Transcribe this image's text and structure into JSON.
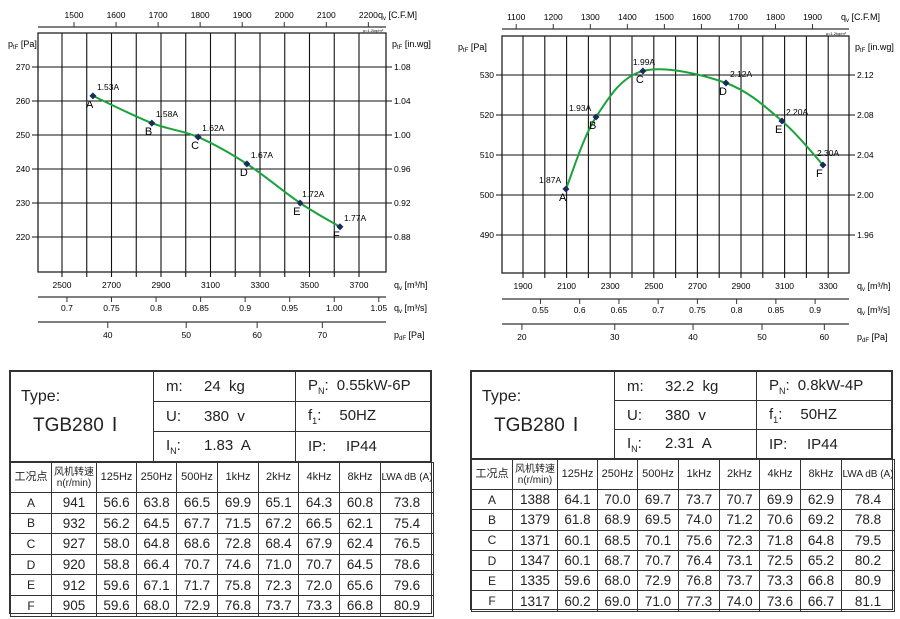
{
  "chart_data": [
    {
      "type": "line",
      "density_note": "ρ=1.2kg/m³",
      "x": [
        2625,
        2863,
        3050,
        3247,
        3462,
        3623
      ],
      "series": [
        {
          "values": [
            261.5,
            253.5,
            249.4,
            241.5,
            230,
            223
          ]
        }
      ],
      "point_labels": [
        "A",
        "B",
        "C",
        "D",
        "E",
        "F"
      ],
      "current_labels": [
        "1.53A",
        "1.58A",
        "1.62A",
        "1.67A",
        "1.72A",
        "1.77A"
      ],
      "x_ticks": [
        "2500",
        "2700",
        "2900",
        "3100",
        "3300",
        "3500",
        "3700"
      ],
      "xlim": [
        2500,
        3700
      ],
      "y_ticks": [
        "270",
        "260",
        "250",
        "240",
        "230",
        "220"
      ],
      "ylim": [
        215,
        270
      ],
      "y2_ticks": [
        "1.08",
        "1.04",
        "1.00",
        "0.96",
        "0.92",
        "0.88"
      ],
      "cfm_ticks": [
        "1500",
        "1600",
        "1700",
        "1800",
        "1900",
        "2000",
        "2100",
        "2200"
      ],
      "m3s_ticks": [
        "0.7",
        "0.75",
        "0.8",
        "0.85",
        "0.9",
        "0.95",
        "1.00",
        "1.05"
      ],
      "pd_ticks": [
        "40",
        "50",
        "60",
        "70"
      ],
      "axis_labels": {
        "cfm": {
          "sym": "q",
          "sub": "v",
          "unit": " [C.F.M]"
        },
        "y": {
          "sym": "p",
          "sub": "tF",
          "unit": " [Pa]"
        },
        "y2": {
          "sym": "p",
          "sub": "tF",
          "unit": " [in.wg]"
        },
        "x": {
          "sym": "q",
          "sub": "v",
          "unit": " [m³/h]"
        },
        "m3s": {
          "sym": "q",
          "sub": "v",
          "unit": " [m³/s]"
        },
        "pd": {
          "sym": "p",
          "sub": "dF",
          "unit": " [Pa]"
        }
      },
      "curve_color": "#1aa33a",
      "marker_color": "#1b2a5a"
    },
    {
      "type": "line",
      "density_note": "ρ=1.2kg/m³",
      "x": [
        2097,
        2235,
        2450,
        2831,
        3088,
        3276
      ],
      "series": [
        {
          "values": [
            501.5,
            519.5,
            531,
            528,
            518.5,
            507.5
          ]
        }
      ],
      "point_labels": [
        "A",
        "B",
        "C",
        "D",
        "E",
        "F"
      ],
      "current_labels": [
        "1.87A",
        "1.93A",
        "1.99A",
        "2.12A",
        "2.20A",
        "2.30A"
      ],
      "x_ticks": [
        "1900",
        "2100",
        "2300",
        "2500",
        "2700",
        "2900",
        "3100",
        "3300"
      ],
      "xlim": [
        1900,
        3300
      ],
      "y_ticks": [
        "530",
        "520",
        "510",
        "500",
        "490"
      ],
      "ylim": [
        480,
        540
      ],
      "y2_ticks": [
        "2.12",
        "2.08",
        "2.04",
        "2.00",
        "1.96"
      ],
      "cfm_ticks": [
        "1100",
        "1200",
        "1300",
        "1400",
        "1500",
        "1600",
        "1700",
        "1800",
        "1900"
      ],
      "m3s_ticks": [
        "0.55",
        "0.6",
        "0.65",
        "0.7",
        "0.75",
        "0.8",
        "0.85",
        "0.9"
      ],
      "pd_ticks": [
        "20",
        "30",
        "40",
        "50",
        "60"
      ],
      "axis_labels": {
        "cfm": {
          "sym": "q",
          "sub": "v",
          "unit": " [C.F.M]"
        },
        "y": {
          "sym": "p",
          "sub": "tF",
          "unit": " [Pa]"
        },
        "y2": {
          "sym": "p",
          "sub": "tF",
          "unit": " [in.wg]"
        },
        "x": {
          "sym": "q",
          "sub": "v",
          "unit": " [m³/h]"
        },
        "m3s": {
          "sym": "q",
          "sub": "v",
          "unit": " [m³/s]"
        },
        "pd": {
          "sym": "p",
          "sub": "dF",
          "unit": " [Pa]"
        }
      },
      "curve_color": "#1aa33a",
      "marker_color": "#1b2a5a"
    }
  ],
  "spec_tables": [
    {
      "type_label": "Type:",
      "model": "TGB280",
      "model_suffix": "Ⅰ",
      "m_label": "m:",
      "m_value": "24  kg",
      "u_label": "U:",
      "u_value": "380  v",
      "i_label": "I",
      "i_sub": "N",
      "i_value": "1.83  A",
      "p_label": "P",
      "p_sub": "N",
      "p_value": "0.55kW-6P",
      "f_label": "f",
      "f_sub": "1",
      "f_value": "50HZ",
      "ip_label": "IP:",
      "ip_value": "IP44",
      "headers": [
        "工况点",
        "风机转速\nn(r/min)",
        "125Hz",
        "250Hz",
        "500Hz",
        "1kHz",
        "2kHz",
        "4kHz",
        "8kHz",
        "LWA dB (A)"
      ],
      "rows": [
        [
          "A",
          "941",
          "56.6",
          "63.8",
          "66.5",
          "69.9",
          "65.1",
          "64.3",
          "60.8",
          "73.8"
        ],
        [
          "B",
          "932",
          "56.2",
          "64.5",
          "67.7",
          "71.5",
          "67.2",
          "66.5",
          "62.1",
          "75.4"
        ],
        [
          "C",
          "927",
          "58.0",
          "64.8",
          "68.6",
          "72.8",
          "68.4",
          "67.9",
          "62.4",
          "76.5"
        ],
        [
          "D",
          "920",
          "58.8",
          "66.4",
          "70.7",
          "74.6",
          "71.0",
          "70.7",
          "64.5",
          "78.6"
        ],
        [
          "E",
          "912",
          "59.6",
          "67.1",
          "71.7",
          "75.8",
          "72.3",
          "72.0",
          "65.6",
          "79.6"
        ],
        [
          "F",
          "905",
          "59.6",
          "68.0",
          "72.9",
          "76.8",
          "73.7",
          "73.3",
          "66.8",
          "80.9"
        ]
      ]
    },
    {
      "type_label": "Type:",
      "model": "TGB280",
      "model_suffix": "Ⅰ",
      "m_label": "m:",
      "m_value": "32.2  kg",
      "u_label": "U:",
      "u_value": "380  v",
      "i_label": "I",
      "i_sub": "N",
      "i_value": "2.31  A",
      "p_label": "P",
      "p_sub": "N",
      "p_value": "0.8kW-4P",
      "f_label": "f",
      "f_sub": "1",
      "f_value": "50HZ",
      "ip_label": "IP:",
      "ip_value": "IP44",
      "headers": [
        "工况点",
        "风机转速\nn(r/min)",
        "125Hz",
        "250Hz",
        "500Hz",
        "1kHz",
        "2kHz",
        "4kHz",
        "8kHz",
        "LWA dB (A)"
      ],
      "rows": [
        [
          "A",
          "1388",
          "64.1",
          "70.0",
          "69.7",
          "73.7",
          "70.7",
          "69.9",
          "62.9",
          "78.4"
        ],
        [
          "B",
          "1379",
          "61.8",
          "68.9",
          "69.5",
          "74.0",
          "71.2",
          "70.6",
          "69.2",
          "78.8"
        ],
        [
          "C",
          "1371",
          "60.1",
          "68.5",
          "70.1",
          "75.6",
          "72.3",
          "71.8",
          "64.8",
          "79.5"
        ],
        [
          "D",
          "1347",
          "60.1",
          "68.7",
          "70.7",
          "76.4",
          "73.1",
          "72.5",
          "65.2",
          "80.2"
        ],
        [
          "E",
          "1335",
          "59.6",
          "68.0",
          "72.9",
          "76.8",
          "73.7",
          "73.3",
          "66.8",
          "80.9"
        ],
        [
          "F",
          "1317",
          "60.2",
          "69.0",
          "71.0",
          "77.3",
          "74.0",
          "73.6",
          "66.7",
          "81.1"
        ]
      ]
    }
  ]
}
